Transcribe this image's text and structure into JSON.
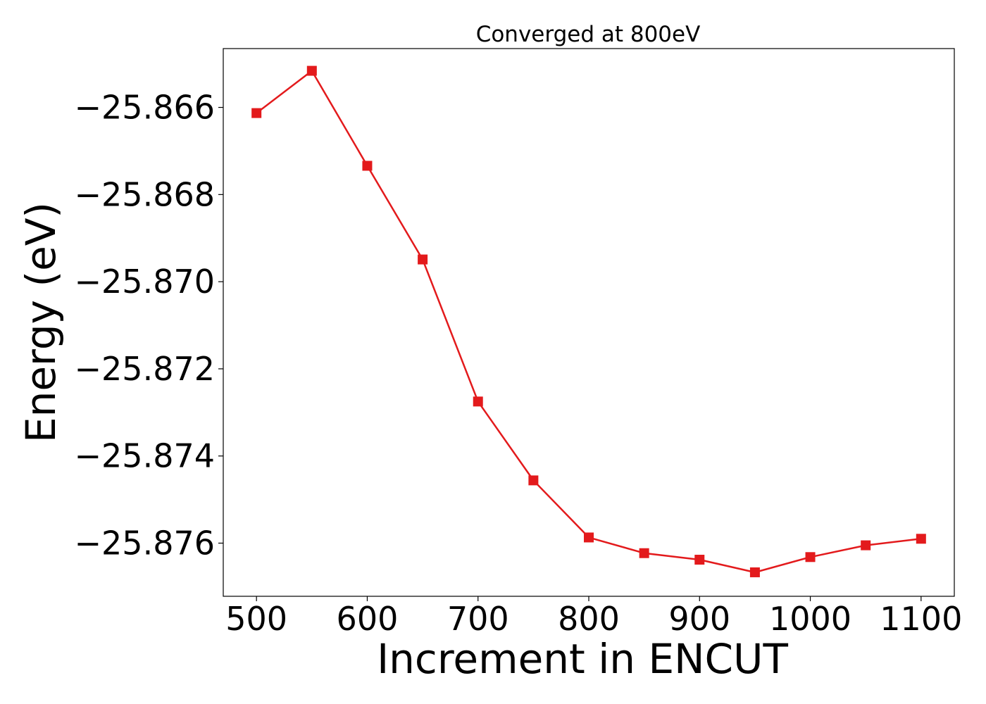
{
  "chart_data": {
    "type": "line",
    "title": "Converged at 800eV",
    "xlabel": "Increment in ENCUT",
    "ylabel": "Energy (eV)",
    "xlim": [
      470,
      1130
    ],
    "ylim": [
      -25.87722,
      -25.86465
    ],
    "x_ticks": [
      500,
      600,
      700,
      800,
      900,
      1000,
      1100
    ],
    "x_tick_labels": [
      "500",
      "600",
      "700",
      "800",
      "900",
      "1000",
      "1100"
    ],
    "y_ticks": [
      -25.866,
      -25.868,
      -25.87,
      -25.872,
      -25.874,
      -25.876
    ],
    "y_tick_labels": [
      "−25.866",
      "−25.868",
      "−25.870",
      "−25.872",
      "−25.874",
      "−25.876"
    ],
    "grid": false,
    "series": [
      {
        "color": "#e31a1c",
        "marker": "square",
        "x": [
          500,
          550,
          600,
          650,
          700,
          750,
          800,
          850,
          900,
          950,
          1000,
          1050,
          1100
        ],
        "y": [
          -25.86613,
          -25.86516,
          -25.86734,
          -25.86949,
          -25.87275,
          -25.87456,
          -25.87587,
          -25.87623,
          -25.87638,
          -25.87667,
          -25.87632,
          -25.87605,
          -25.8759
        ]
      }
    ]
  }
}
